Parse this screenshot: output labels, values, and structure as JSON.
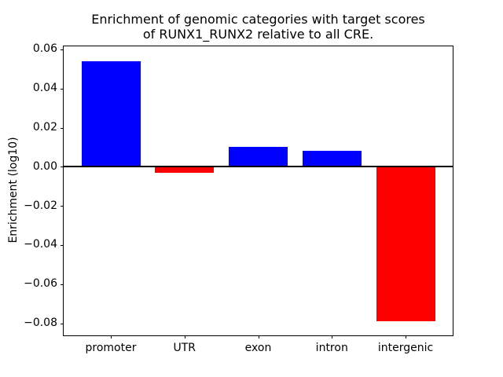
{
  "chart_data": {
    "type": "bar",
    "title": "Enrichment of genomic categories with target scores of RUNX1_RUNX2 relative to all CRE.",
    "title_lines": [
      "Enrichment of genomic categories with target scores",
      "of RUNX1_RUNX2 relative to all CRE."
    ],
    "xlabel": "",
    "ylabel": "Enrichment (log10)",
    "categories": [
      "promoter",
      "UTR",
      "exon",
      "intron",
      "intergenic"
    ],
    "values": [
      0.054,
      -0.003,
      0.01,
      0.008,
      -0.079
    ],
    "bar_colors": [
      "#0000ff",
      "#ff0000",
      "#0000ff",
      "#0000ff",
      "#ff0000"
    ],
    "positive_color": "#0000ff",
    "negative_color": "#ff0000",
    "bar_width_fraction": 0.8,
    "xlim": [
      -0.64,
      4.64
    ],
    "ylim": [
      -0.0862,
      0.0616
    ],
    "yticks": [
      0.06,
      0.04,
      0.02,
      0.0,
      -0.02,
      -0.04,
      -0.06,
      -0.08
    ],
    "ytick_labels": [
      "0.06",
      "0.04",
      "0.02",
      "0.00",
      "−0.02",
      "−0.04",
      "−0.06",
      "−0.08"
    ],
    "grid": false,
    "legend": null,
    "zero_line": true,
    "frame": "full-box"
  }
}
